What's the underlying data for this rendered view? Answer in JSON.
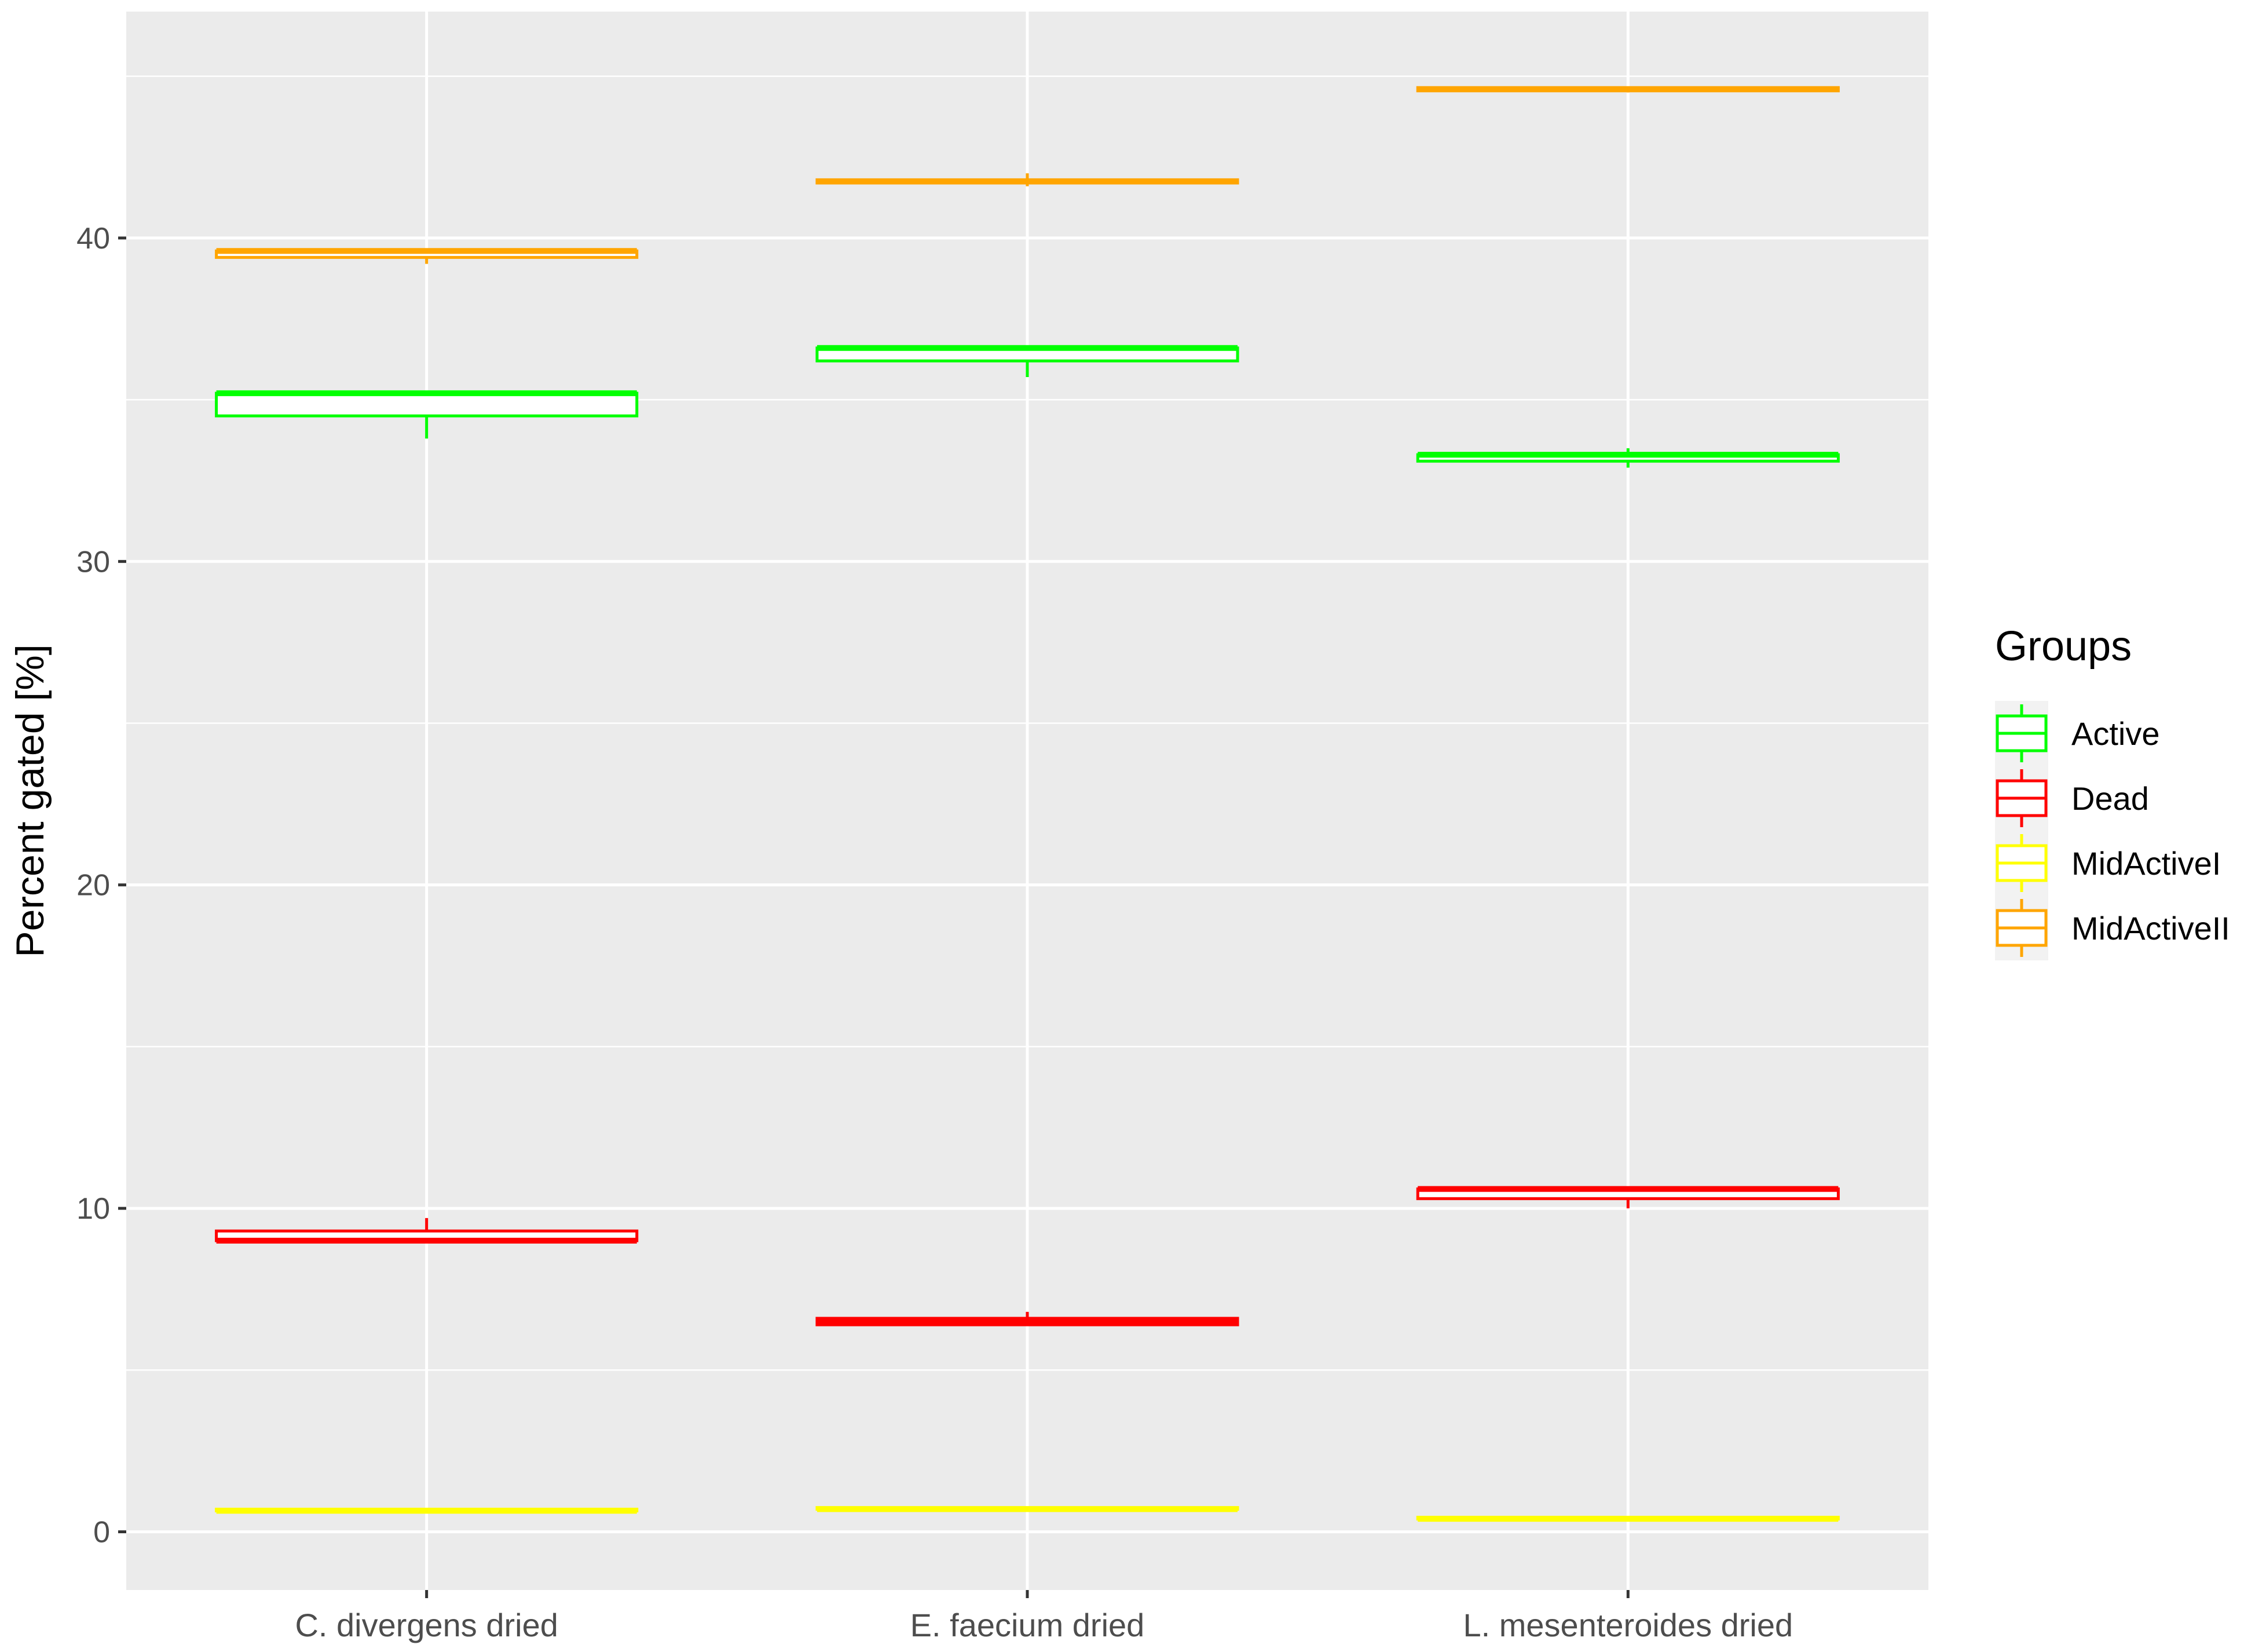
{
  "chart_data": {
    "type": "boxplot",
    "title": "",
    "xlabel": "",
    "ylabel": "Percent gated [%]",
    "ylim": [
      -1.8,
      47.0
    ],
    "yticks": [
      0,
      10,
      20,
      30,
      40
    ],
    "grid": true,
    "legend_title": "Groups",
    "legend_position": "right",
    "categories": [
      "C. divergens dried",
      "E. faecium dried",
      "L. mesenteroides dried"
    ],
    "series": [
      {
        "name": "Active",
        "color": "#00ff00",
        "boxes": [
          {
            "min": 33.8,
            "q1": 34.5,
            "median": 35.2,
            "q3": 35.2,
            "max": 35.2
          },
          {
            "min": 35.7,
            "q1": 36.2,
            "median": 36.6,
            "q3": 36.6,
            "max": 36.6
          },
          {
            "min": 32.9,
            "q1": 33.1,
            "median": 33.3,
            "q3": 33.3,
            "max": 33.5
          }
        ]
      },
      {
        "name": "Dead",
        "color": "#ff0000",
        "boxes": [
          {
            "min": 9.0,
            "q1": 9.0,
            "median": 9.0,
            "q3": 9.3,
            "max": 9.7
          },
          {
            "min": 6.4,
            "q1": 6.4,
            "median": 6.5,
            "q3": 6.6,
            "max": 6.8
          },
          {
            "min": 10.0,
            "q1": 10.3,
            "median": 10.6,
            "q3": 10.6,
            "max": 10.6
          }
        ]
      },
      {
        "name": "MidActiveI",
        "color": "#ffff00",
        "boxes": [
          {
            "min": 0.6,
            "q1": 0.65,
            "median": 0.65,
            "q3": 0.7,
            "max": 0.7
          },
          {
            "min": 0.65,
            "q1": 0.7,
            "median": 0.7,
            "q3": 0.75,
            "max": 0.75
          },
          {
            "min": 0.35,
            "q1": 0.4,
            "median": 0.4,
            "q3": 0.45,
            "max": 0.45
          }
        ]
      },
      {
        "name": "MidActiveII",
        "color": "#ffa500",
        "boxes": [
          {
            "min": 39.2,
            "q1": 39.4,
            "median": 39.6,
            "q3": 39.6,
            "max": 39.6
          },
          {
            "min": 41.6,
            "q1": 41.7,
            "median": 41.75,
            "q3": 41.8,
            "max": 42.0
          },
          {
            "min": 44.5,
            "q1": 44.55,
            "median": 44.6,
            "q3": 44.65,
            "max": 44.65
          }
        ]
      }
    ]
  }
}
